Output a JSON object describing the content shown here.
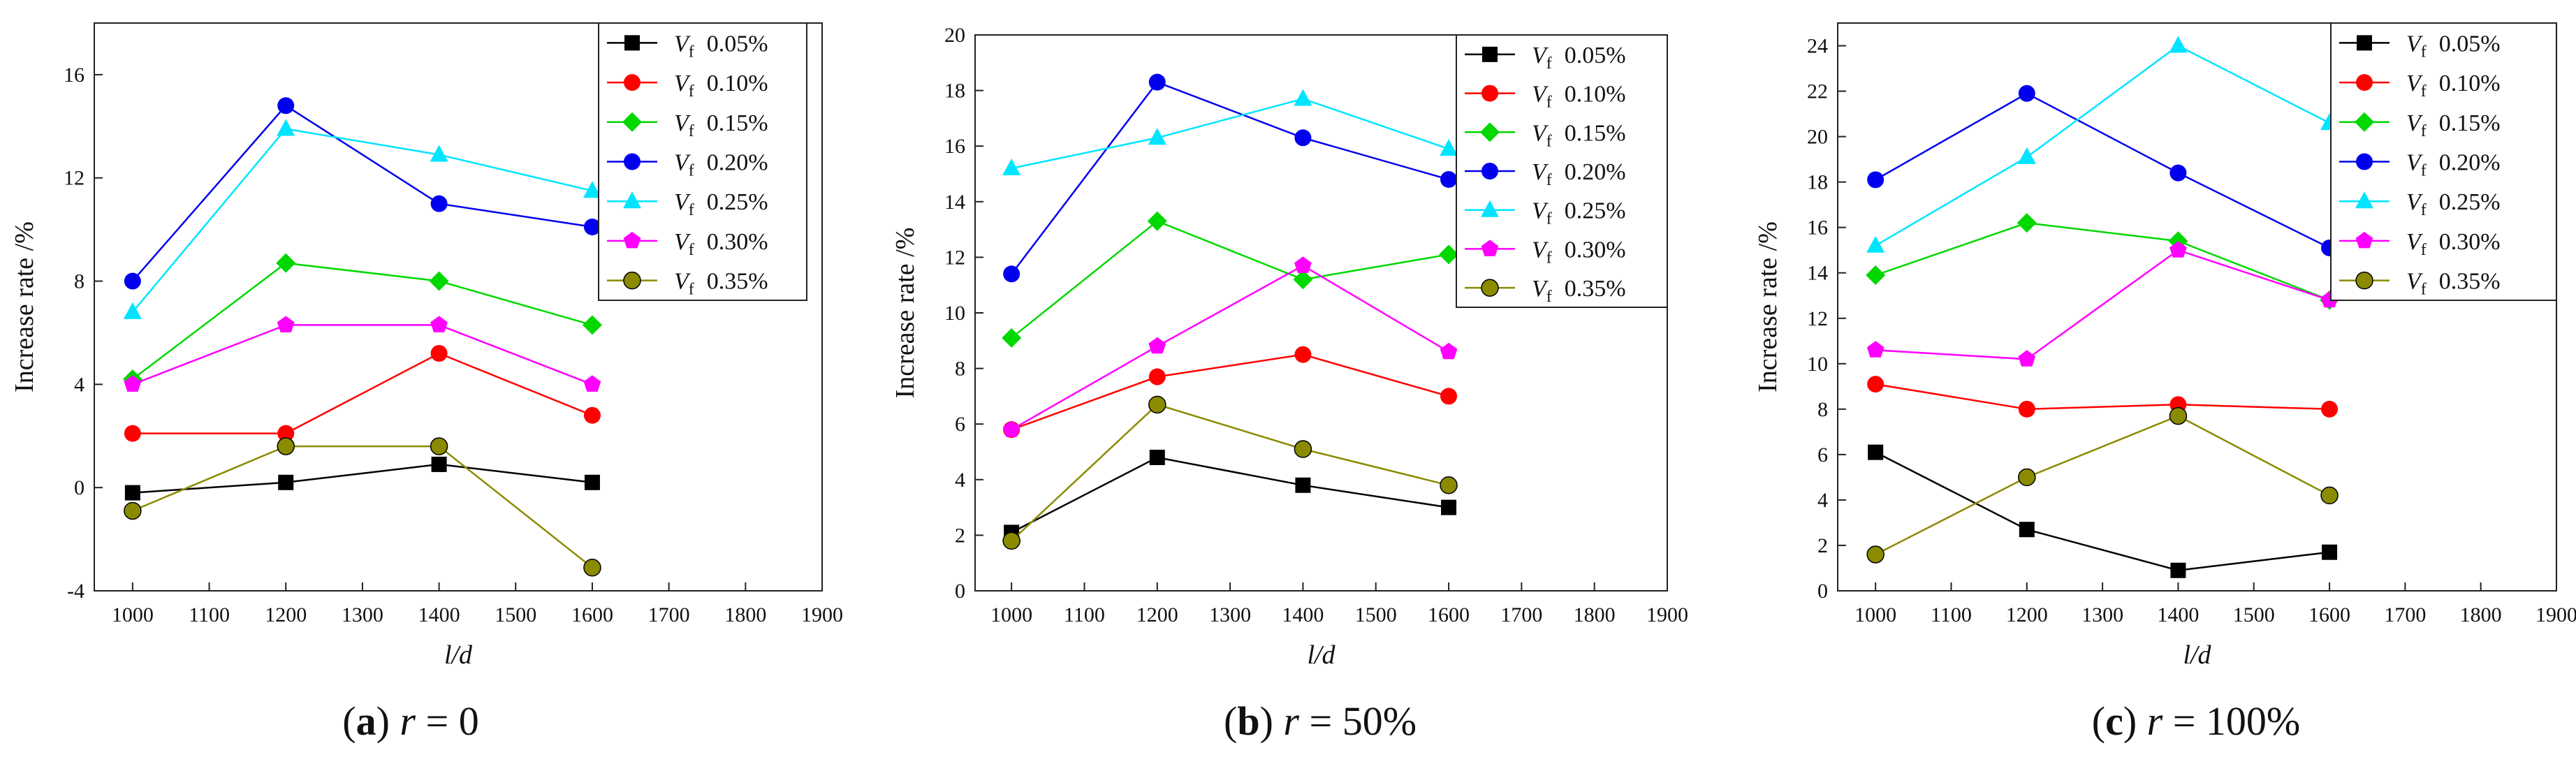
{
  "chart_data": [
    {
      "type": "line",
      "panel_id": "a",
      "caption": "r = 0",
      "caption_letter": "a",
      "caption_var": "r",
      "caption_rest": "= 0",
      "xlabel": "l/d",
      "ylabel": "Increase rate /%",
      "xlim": [
        950,
        1900
      ],
      "ylim": [
        -4,
        18
      ],
      "xticks": [
        1000,
        1100,
        1200,
        1300,
        1400,
        1500,
        1600,
        1700,
        1800,
        1900
      ],
      "yticks": [
        -4,
        0,
        4,
        8,
        12,
        16
      ],
      "x": [
        1000,
        1200,
        1400,
        1600
      ],
      "series": [
        {
          "name": "Vf 0.05%",
          "var": "V",
          "sub": "f",
          "pct": "0.05%",
          "color": "#000000",
          "marker": "square",
          "values": [
            -0.2,
            0.2,
            0.9,
            0.2
          ]
        },
        {
          "name": "Vf 0.10%",
          "var": "V",
          "sub": "f",
          "pct": "0.10%",
          "color": "#ff0000",
          "marker": "circle",
          "values": [
            2.1,
            2.1,
            5.2,
            2.8
          ]
        },
        {
          "name": "Vf 0.15%",
          "var": "V",
          "sub": "f",
          "pct": "0.15%",
          "color": "#00d800",
          "marker": "diamond",
          "values": [
            4.2,
            8.7,
            8.0,
            6.3
          ]
        },
        {
          "name": "Vf 0.20%",
          "var": "V",
          "sub": "f",
          "pct": "0.20%",
          "color": "#0000ee",
          "marker": "circle",
          "values": [
            8.0,
            14.8,
            11.0,
            10.1
          ]
        },
        {
          "name": "Vf 0.25%",
          "var": "V",
          "sub": "f",
          "pct": "0.25%",
          "color": "#00e5ff",
          "marker": "triangle",
          "values": [
            6.8,
            13.9,
            12.9,
            11.5
          ]
        },
        {
          "name": "Vf 0.30%",
          "var": "V",
          "sub": "f",
          "pct": "0.30%",
          "color": "#ff00ff",
          "marker": "pentagon",
          "values": [
            4.0,
            6.3,
            6.3,
            4.0
          ]
        },
        {
          "name": "Vf 0.35%",
          "var": "V",
          "sub": "f",
          "pct": "0.35%",
          "color": "#8b8b00",
          "marker": "circle-dot",
          "values": [
            -0.9,
            1.6,
            1.6,
            -3.1
          ]
        }
      ]
    },
    {
      "type": "line",
      "panel_id": "b",
      "caption": "r = 50%",
      "caption_letter": "b",
      "caption_var": "r",
      "caption_rest": "= 50%",
      "xlabel": "l/d",
      "ylabel": "Increase rate /%",
      "xlim": [
        950,
        1900
      ],
      "ylim": [
        0,
        20
      ],
      "xticks": [
        1000,
        1100,
        1200,
        1300,
        1400,
        1500,
        1600,
        1700,
        1800,
        1900
      ],
      "yticks": [
        0,
        2,
        4,
        6,
        8,
        10,
        12,
        14,
        16,
        18,
        20
      ],
      "x": [
        1000,
        1200,
        1400,
        1600
      ],
      "series": [
        {
          "name": "Vf 0.05%",
          "var": "V",
          "sub": "f",
          "pct": "0.05%",
          "color": "#000000",
          "marker": "square",
          "values": [
            2.1,
            4.8,
            3.8,
            3.0
          ]
        },
        {
          "name": "Vf 0.10%",
          "var": "V",
          "sub": "f",
          "pct": "0.10%",
          "color": "#ff0000",
          "marker": "circle",
          "values": [
            5.8,
            7.7,
            8.5,
            7.0
          ]
        },
        {
          "name": "Vf 0.15%",
          "var": "V",
          "sub": "f",
          "pct": "0.15%",
          "color": "#00d800",
          "marker": "diamond",
          "values": [
            9.1,
            13.3,
            11.2,
            12.1
          ]
        },
        {
          "name": "Vf 0.20%",
          "var": "V",
          "sub": "f",
          "pct": "0.20%",
          "color": "#0000ee",
          "marker": "circle",
          "values": [
            11.4,
            18.3,
            16.3,
            14.8
          ]
        },
        {
          "name": "Vf 0.25%",
          "var": "V",
          "sub": "f",
          "pct": "0.25%",
          "color": "#00e5ff",
          "marker": "triangle",
          "values": [
            15.2,
            16.3,
            17.7,
            15.9
          ]
        },
        {
          "name": "Vf 0.30%",
          "var": "V",
          "sub": "f",
          "pct": "0.30%",
          "color": "#ff00ff",
          "marker": "pentagon",
          "values": [
            5.8,
            8.8,
            11.7,
            8.6
          ]
        },
        {
          "name": "Vf 0.35%",
          "var": "V",
          "sub": "f",
          "pct": "0.35%",
          "color": "#8b8b00",
          "marker": "circle-dot",
          "values": [
            1.8,
            6.7,
            5.1,
            3.8
          ]
        }
      ]
    },
    {
      "type": "line",
      "panel_id": "c",
      "caption": "r = 100%",
      "caption_letter": "c",
      "caption_var": "r",
      "caption_rest": "= 100%",
      "xlabel": "l/d",
      "ylabel": "Increase rate /%",
      "xlim": [
        950,
        1900
      ],
      "ylim": [
        0,
        25
      ],
      "xticks": [
        1000,
        1100,
        1200,
        1300,
        1400,
        1500,
        1600,
        1700,
        1800,
        1900
      ],
      "yticks": [
        0,
        2,
        4,
        6,
        8,
        10,
        12,
        14,
        16,
        18,
        20,
        22,
        24
      ],
      "x": [
        1000,
        1200,
        1400,
        1600
      ],
      "series": [
        {
          "name": "Vf 0.05%",
          "var": "V",
          "sub": "f",
          "pct": "0.05%",
          "color": "#000000",
          "marker": "square",
          "values": [
            6.1,
            2.7,
            0.9,
            1.7
          ]
        },
        {
          "name": "Vf 0.10%",
          "var": "V",
          "sub": "f",
          "pct": "0.10%",
          "color": "#ff0000",
          "marker": "circle",
          "values": [
            9.1,
            8.0,
            8.2,
            8.0
          ]
        },
        {
          "name": "Vf 0.15%",
          "var": "V",
          "sub": "f",
          "pct": "0.15%",
          "color": "#00d800",
          "marker": "diamond",
          "values": [
            13.9,
            16.2,
            15.4,
            12.8
          ]
        },
        {
          "name": "Vf 0.20%",
          "var": "V",
          "sub": "f",
          "pct": "0.20%",
          "color": "#0000ee",
          "marker": "circle",
          "values": [
            18.1,
            21.9,
            18.4,
            15.1
          ]
        },
        {
          "name": "Vf 0.25%",
          "var": "V",
          "sub": "f",
          "pct": "0.25%",
          "color": "#00e5ff",
          "marker": "triangle",
          "values": [
            15.2,
            19.1,
            24.0,
            20.6
          ]
        },
        {
          "name": "Vf 0.30%",
          "var": "V",
          "sub": "f",
          "pct": "0.30%",
          "color": "#ff00ff",
          "marker": "pentagon",
          "values": [
            10.6,
            10.2,
            15.0,
            12.8
          ]
        },
        {
          "name": "Vf 0.35%",
          "var": "V",
          "sub": "f",
          "pct": "0.35%",
          "color": "#8b8b00",
          "marker": "circle-dot",
          "values": [
            1.6,
            5.0,
            7.7,
            4.2
          ]
        }
      ]
    }
  ]
}
